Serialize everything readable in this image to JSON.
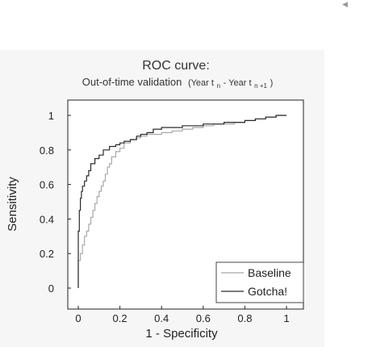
{
  "collapse_icon": "triangle-left-icon",
  "chart_data": {
    "type": "line",
    "title": "ROC curve:",
    "subtitle": {
      "main": "Out-of-time validation",
      "paren_open": "(Year t",
      "sub1": "n",
      "mid": " - Year t",
      "sub2": "n +1",
      "paren_close": ")"
    },
    "xlabel": "1 - Specificity",
    "ylabel": "Sensitivity",
    "xlim": [
      0,
      1
    ],
    "ylim": [
      0,
      1
    ],
    "xticks": [
      "0",
      "0.2",
      "0.4",
      "0.6",
      "0.8",
      "1"
    ],
    "yticks": [
      "0",
      "0.2",
      "0.4",
      "0.6",
      "0.8",
      "1"
    ],
    "grid": false,
    "legend_position": "bottom-right",
    "series": [
      {
        "name": "Baseline",
        "color": "#a8a8a8",
        "x": [
          0,
          0,
          0.01,
          0.02,
          0.03,
          0.04,
          0.05,
          0.06,
          0.07,
          0.08,
          0.09,
          0.1,
          0.11,
          0.12,
          0.13,
          0.14,
          0.15,
          0.16,
          0.18,
          0.2,
          0.22,
          0.25,
          0.28,
          0.3,
          0.33,
          0.36,
          0.4,
          0.45,
          0.5,
          0.55,
          0.6,
          0.65,
          0.7,
          0.75,
          0.8,
          0.85,
          0.9,
          0.95,
          1.0
        ],
        "y": [
          0,
          0.12,
          0.16,
          0.2,
          0.25,
          0.3,
          0.33,
          0.37,
          0.41,
          0.45,
          0.49,
          0.53,
          0.56,
          0.59,
          0.62,
          0.66,
          0.7,
          0.72,
          0.76,
          0.79,
          0.81,
          0.84,
          0.86,
          0.87,
          0.88,
          0.89,
          0.89,
          0.9,
          0.91,
          0.92,
          0.93,
          0.94,
          0.95,
          0.95,
          0.96,
          0.97,
          0.98,
          0.99,
          1.0
        ]
      },
      {
        "name": "Gotcha!",
        "color": "#2a2a2a",
        "x": [
          0,
          0,
          0.005,
          0.01,
          0.015,
          0.02,
          0.03,
          0.04,
          0.05,
          0.06,
          0.08,
          0.1,
          0.12,
          0.15,
          0.18,
          0.2,
          0.22,
          0.25,
          0.28,
          0.3,
          0.33,
          0.36,
          0.4,
          0.45,
          0.5,
          0.55,
          0.6,
          0.65,
          0.7,
          0.75,
          0.8,
          0.85,
          0.9,
          0.95,
          1.0
        ],
        "y": [
          0,
          0.18,
          0.33,
          0.45,
          0.52,
          0.56,
          0.59,
          0.62,
          0.65,
          0.68,
          0.72,
          0.75,
          0.77,
          0.8,
          0.82,
          0.83,
          0.84,
          0.85,
          0.86,
          0.88,
          0.89,
          0.9,
          0.92,
          0.93,
          0.93,
          0.94,
          0.94,
          0.95,
          0.95,
          0.96,
          0.96,
          0.97,
          0.98,
          0.99,
          1.0
        ]
      }
    ]
  }
}
